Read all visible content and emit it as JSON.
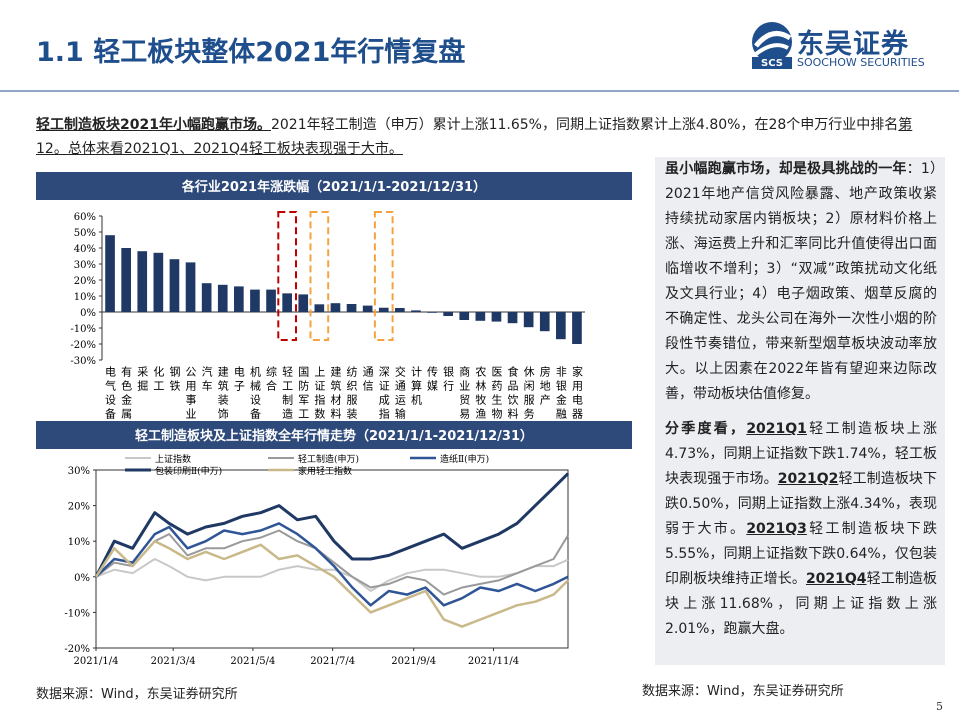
{
  "header": {
    "title": "1.1 轻工板块整体2021年行情复盘",
    "logo_cn": "东吴证券",
    "logo_en": "SOOCHOW SECURITIES"
  },
  "intro": [
    {
      "text": "轻工制造板块2021年小幅跑赢市场。",
      "bold": true,
      "underline": true
    },
    {
      "text": "2021年轻工制造（申万）累计上涨11.65%，同期上证指数累计上涨4.80%，在28个申万行业中排名"
    },
    {
      "text": "第12。总体来看2021Q1、2021Q4轻工板块表现强于大市。",
      "underline": true
    }
  ],
  "chart_data": [
    {
      "type": "bar",
      "title": "各行业2021年涨跌幅（2021/1/1-2021/12/31）",
      "color": "#1f3864",
      "categories": [
        "电气设备",
        "有色金属",
        "采掘",
        "化工",
        "钢铁",
        "公用事业",
        "汽车",
        "建筑装饰",
        "电子",
        "机械设备",
        "综合",
        "轻工制造",
        "国防军工",
        "上证指数",
        "建筑材料",
        "纺织服装",
        "通信",
        "深证成指",
        "交通运输",
        "计算机",
        "传媒",
        "银行",
        "商业贸易",
        "农林牧渔",
        "医药生物",
        "食品饮料",
        "休闲服务",
        "房地产",
        "非银金融",
        "家用电器"
      ],
      "values": [
        48,
        40,
        38,
        37,
        33,
        31,
        18,
        17,
        16,
        14,
        14,
        11.65,
        11,
        4.8,
        5.5,
        5,
        4,
        2.67,
        2.5,
        1,
        -0.5,
        -2.5,
        -5,
        -5.5,
        -6,
        -7,
        -9.5,
        -12,
        -17,
        -20
      ],
      "ylim": [
        -30,
        60
      ],
      "yticks": [
        {
          "value": -30,
          "label": "-30%"
        },
        {
          "value": -20,
          "label": "-20%"
        },
        {
          "value": -10,
          "label": "-10%"
        },
        {
          "value": 0,
          "label": "0%"
        },
        {
          "value": 10,
          "label": "10%"
        },
        {
          "value": 20,
          "label": "20%"
        },
        {
          "value": 30,
          "label": "30%"
        },
        {
          "value": 40,
          "label": "40%"
        },
        {
          "value": 50,
          "label": "50%"
        },
        {
          "value": 60,
          "label": "60%"
        }
      ]
    },
    {
      "type": "line",
      "title": "轻工制造板块及上证指数全年行情走势（2021/1/1-2021/12/31）",
      "x": [
        "2021/1/4",
        "2021/1/18",
        "2021/2/1",
        "2021/2/18",
        "2021/3/1",
        "2021/3/15",
        "2021/3/29",
        "2021/4/12",
        "2021/4/26",
        "2021/5/10",
        "2021/5/24",
        "2021/6/7",
        "2021/6/21",
        "2021/7/5",
        "2021/7/19",
        "2021/8/2",
        "2021/8/16",
        "2021/8/30",
        "2021/9/13",
        "2021/9/27",
        "2021/10/11",
        "2021/10/25",
        "2021/11/8",
        "2021/11/22",
        "2021/12/6",
        "2021/12/20",
        "2021/12/31"
      ],
      "series": [
        {
          "name": "上证指数",
          "color": "#c8c8c8",
          "width": 2,
          "values": [
            0,
            2,
            1,
            5,
            3,
            0,
            -1,
            0,
            0,
            0,
            2,
            3,
            2,
            2,
            0,
            -4,
            -1,
            1,
            2,
            2,
            1,
            0,
            0,
            1,
            3,
            3,
            4.8
          ]
        },
        {
          "name": "轻工制造(申万)",
          "color": "#9a9a9a",
          "width": 2,
          "values": [
            0,
            4,
            3,
            10,
            12,
            6,
            8,
            8,
            10,
            11,
            13,
            10,
            8,
            4,
            0,
            -3,
            -2,
            0,
            -1,
            -5,
            -3,
            -2,
            -1,
            1,
            3,
            5,
            11.65
          ]
        },
        {
          "name": "造纸Ⅱ(申万)",
          "color": "#2f5597",
          "width": 2.5,
          "values": [
            0,
            5,
            4,
            12,
            14,
            8,
            10,
            13,
            12,
            13,
            15,
            12,
            8,
            3,
            -3,
            -8,
            -4,
            -5,
            -3,
            -8,
            -6,
            -3,
            -4,
            -2,
            -4,
            -2,
            0
          ]
        },
        {
          "name": "包装印刷Ⅱ(申万)",
          "color": "#1f3864",
          "width": 3,
          "values": [
            0,
            10,
            8,
            18,
            15,
            12,
            14,
            15,
            17,
            18,
            20,
            16,
            17,
            10,
            5,
            5,
            6,
            8,
            10,
            12,
            8,
            10,
            12,
            15,
            20,
            25,
            29
          ]
        },
        {
          "name": "家用轻工指数",
          "color": "#c9b98a",
          "width": 2.5,
          "values": [
            0,
            8,
            3,
            10,
            8,
            5,
            7,
            5,
            7,
            9,
            5,
            6,
            3,
            0,
            -5,
            -10,
            -8,
            -6,
            -4,
            -12,
            -14,
            -12,
            -10,
            -8,
            -7,
            -5,
            -1
          ]
        }
      ],
      "ylim": [
        -20,
        30
      ],
      "yticks": [
        {
          "value": -20,
          "label": "-20%"
        },
        {
          "value": -10,
          "label": "-10%"
        },
        {
          "value": 0,
          "label": "0%"
        },
        {
          "value": 10,
          "label": "10%"
        },
        {
          "value": 20,
          "label": "20%"
        },
        {
          "value": 30,
          "label": "30%"
        }
      ],
      "xticks": [
        "2021/1/4",
        "2021/3/4",
        "2021/5/4",
        "2021/7/4",
        "2021/9/4",
        "2021/11/4"
      ]
    }
  ],
  "side": [
    [
      {
        "text": "虽小幅跑赢市场，却是极具挑战的一年",
        "bold": true
      },
      {
        "text": "：1）2021年地产信贷风险暴露、地产政策收紧持续扰动家居内销板块；2）原材料价格上涨、海运费上升和汇率同比升值使得出口面临增收不增利；3）“双减”政策扰动文化纸及文具行业；4）电子烟政策、烟草反腐的不确定性、龙头公司在海外一次性小烟的阶段性节奏错位，带来新型烟草板块波动率放大。以上因素在2022年皆有望迎来边际改善，带动板块估值修复。"
      }
    ],
    [
      {
        "text": "分季度看，",
        "bold": true
      },
      {
        "text": "2021Q1",
        "bold": true,
        "underline": true
      },
      {
        "text": "轻工制造板块上涨4.73%，同期上证指数下跌1.74%，轻工板块表现强于市场。"
      },
      {
        "text": "2021Q2",
        "bold": true,
        "underline": true
      },
      {
        "text": "轻工制造板块下跌0.50%，同期上证指数上涨4.34%，表现弱于大市。"
      },
      {
        "text": "2021Q3",
        "bold": true,
        "underline": true
      },
      {
        "text": "轻工制造板块下跌5.55%，同期上证指数下跌0.64%，仅包装印刷板块维持正增长。"
      },
      {
        "text": "2021Q4",
        "bold": true,
        "underline": true
      },
      {
        "text": "轻工制造板块上涨11.68%，同期上证指数上涨2.01%，跑赢大盘。"
      }
    ]
  ],
  "source_left": "数据来源：Wind，东吴证券研究所",
  "source_right": "数据来源：Wind，东吴证券研究所",
  "page_number": "5"
}
